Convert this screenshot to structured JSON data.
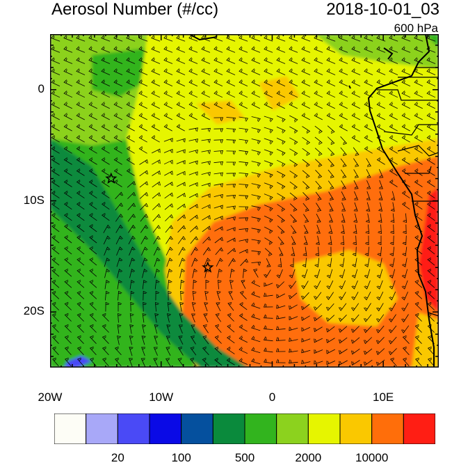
{
  "title": "Aerosol Number (#/cc)",
  "datetime": "2018-10-01_03",
  "level": "600 hPa",
  "map": {
    "lon_range": [
      -20,
      15
    ],
    "lat_range": [
      -25,
      5
    ],
    "lat_ticks": [
      {
        "lat": 0,
        "label": "0"
      },
      {
        "lat": -10,
        "label": "10S"
      },
      {
        "lat": -20,
        "label": "20S"
      }
    ],
    "lon_ticks": [
      {
        "lon": -20,
        "label": "20W"
      },
      {
        "lon": -10,
        "label": "10W"
      },
      {
        "lon": 0,
        "label": "0"
      },
      {
        "lon": 10,
        "label": "10E"
      }
    ],
    "markers": [
      {
        "name": "star",
        "lon": -14.5,
        "lat": -8.0
      },
      {
        "name": "star",
        "lon": -5.8,
        "lat": -16.0
      }
    ]
  },
  "colorbar": {
    "colors": [
      "#fdfdf6",
      "#a8a8f8",
      "#4a4af6",
      "#0a0ae6",
      "#05509e",
      "#0a8a3c",
      "#32b41e",
      "#8cd21e",
      "#e6f500",
      "#fac800",
      "#ff6e0a",
      "#ff1e14"
    ],
    "labels": [
      "20",
      "100",
      "500",
      "2000",
      "10000"
    ]
  }
}
